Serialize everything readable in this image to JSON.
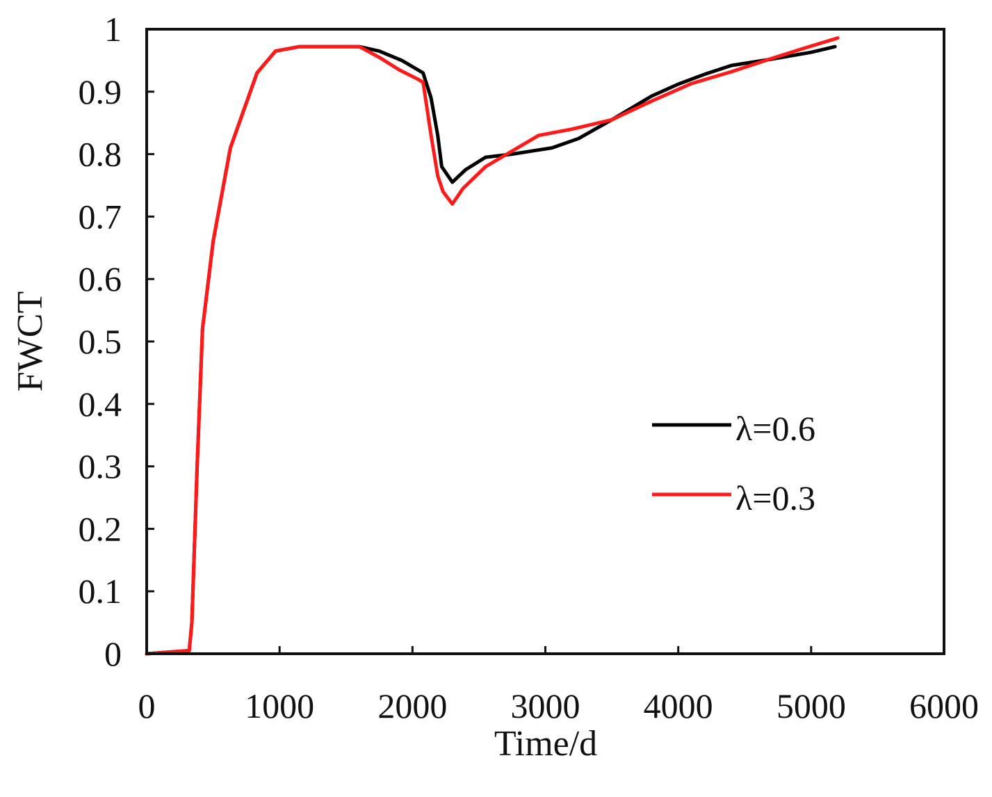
{
  "chart_data": {
    "type": "line",
    "title": "",
    "xlabel": "Time/d",
    "ylabel": "FWCT",
    "xlim": [
      0,
      6000
    ],
    "ylim": [
      0,
      1
    ],
    "xticks": [
      0,
      1000,
      2000,
      3000,
      4000,
      5000,
      6000
    ],
    "yticks": [
      0,
      0.1,
      0.2,
      0.3,
      0.4,
      0.5,
      0.6,
      0.7,
      0.8,
      0.9,
      1
    ],
    "xtick_labels": [
      "0",
      "1000",
      "2000",
      "3000",
      "4000",
      "5000",
      "6000"
    ],
    "ytick_labels": [
      "0",
      "0.1",
      "0.2",
      "0.3",
      "0.4",
      "0.5",
      "0.6",
      "0.7",
      "0.8",
      "0.9",
      "1"
    ],
    "grid": false,
    "legend_position": "right-middle",
    "series": [
      {
        "name": "λ=0.6",
        "color": "#000000",
        "x": [
          0,
          320,
          340,
          380,
          420,
          500,
          630,
          830,
          970,
          1150,
          1400,
          1600,
          1750,
          1920,
          2040,
          2080,
          2140,
          2190,
          2220,
          2300,
          2400,
          2550,
          2750,
          3050,
          3250,
          3500,
          3800,
          4000,
          4200,
          4400,
          4700,
          5000,
          5180
        ],
        "y": [
          0,
          0.005,
          0.05,
          0.3,
          0.52,
          0.66,
          0.81,
          0.93,
          0.965,
          0.972,
          0.972,
          0.972,
          0.965,
          0.95,
          0.935,
          0.93,
          0.89,
          0.83,
          0.78,
          0.755,
          0.775,
          0.795,
          0.8,
          0.81,
          0.825,
          0.855,
          0.893,
          0.912,
          0.928,
          0.942,
          0.952,
          0.963,
          0.972
        ]
      },
      {
        "name": "λ=0.3",
        "color": "#ff1a1a",
        "x": [
          0,
          320,
          340,
          380,
          420,
          500,
          630,
          830,
          970,
          1150,
          1400,
          1600,
          1750,
          1900,
          2040,
          2080,
          2140,
          2190,
          2230,
          2300,
          2380,
          2550,
          2750,
          2950,
          3200,
          3500,
          3800,
          4100,
          4400,
          4700,
          5000,
          5200
        ],
        "y": [
          0,
          0.005,
          0.05,
          0.3,
          0.52,
          0.66,
          0.81,
          0.93,
          0.965,
          0.972,
          0.972,
          0.972,
          0.955,
          0.935,
          0.92,
          0.915,
          0.83,
          0.765,
          0.74,
          0.72,
          0.745,
          0.78,
          0.805,
          0.83,
          0.84,
          0.855,
          0.885,
          0.913,
          0.932,
          0.953,
          0.973,
          0.986
        ]
      }
    ]
  }
}
